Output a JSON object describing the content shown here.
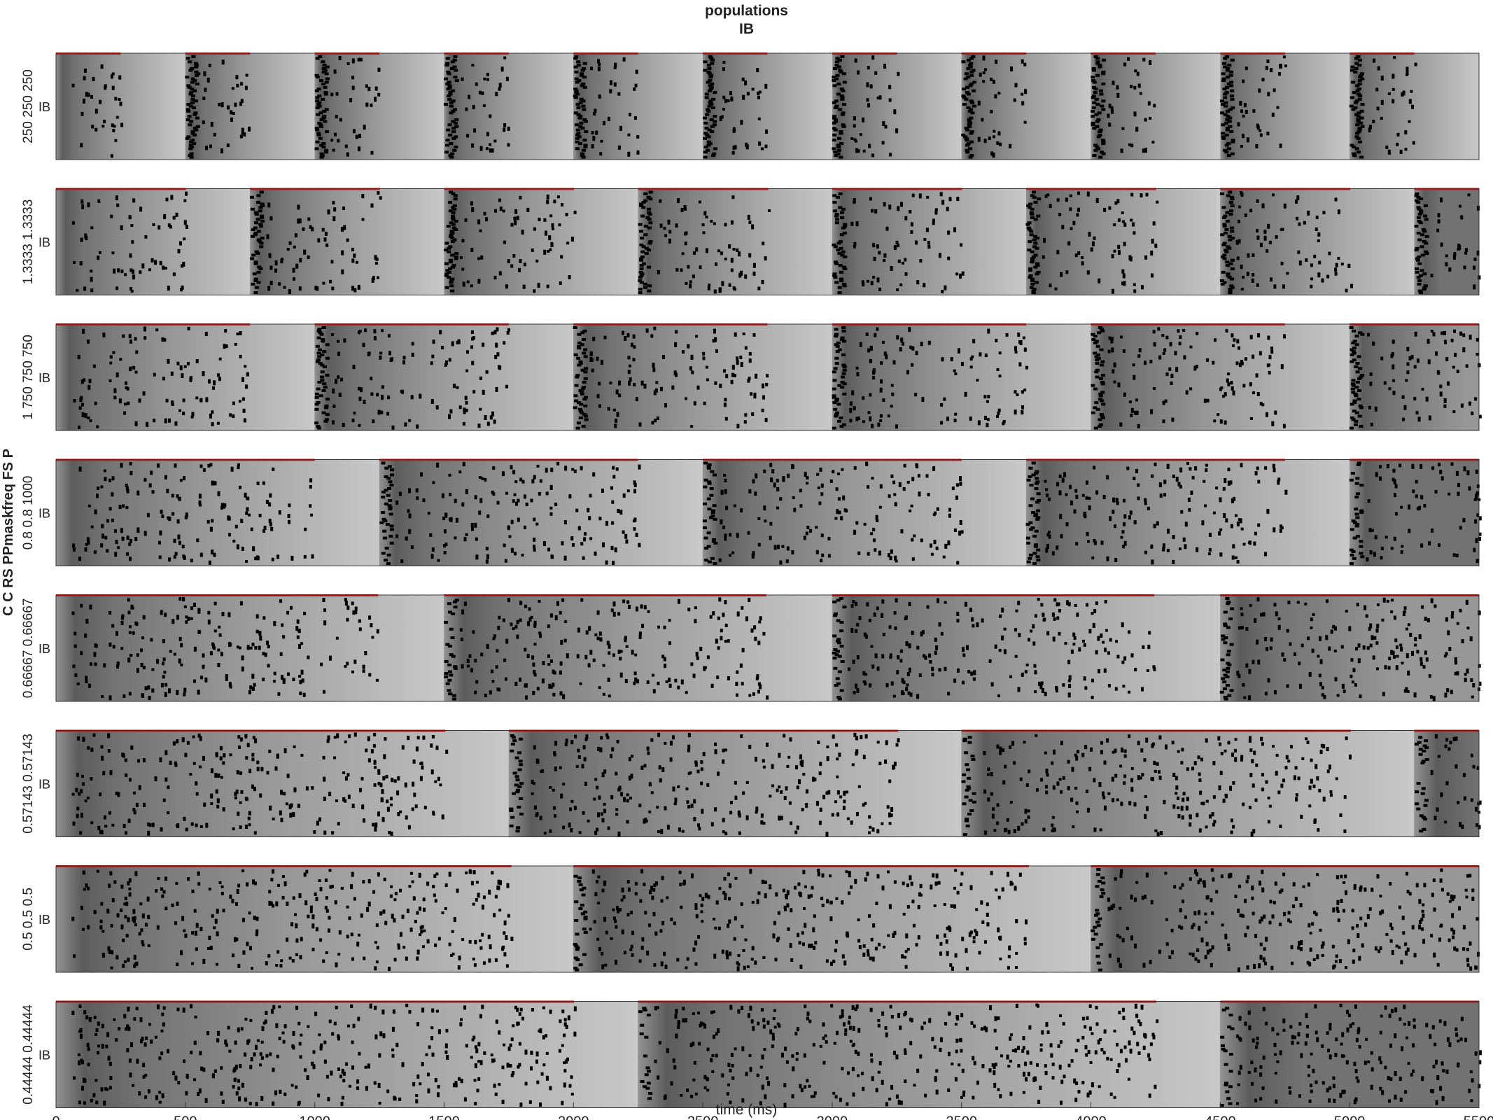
{
  "title": {
    "line1": "populations",
    "line2": "IB"
  },
  "y_axis_title": "C C RS PPmaskfreq FS P",
  "x_axis_title": "time (ms)",
  "colors": {
    "spikes": "#000000",
    "mask_bar": "#cc1111",
    "frame": "#333333"
  },
  "chart_data": {
    "type": "raster",
    "title": "populations IB",
    "xlabel": "time (ms)",
    "ylabel": "C C RS PPmaskfreq FS P",
    "xlim": [
      0,
      5500
    ],
    "x_ticks": [
      0,
      500,
      1000,
      1500,
      2000,
      2500,
      3000,
      3500,
      4000,
      4500,
      5000,
      5500
    ],
    "x_tick_labels": [
      "0",
      "500",
      "1000",
      "1500",
      "2000",
      "2500",
      "3000",
      "3500",
      "4000",
      "4500",
      "5000",
      "5500"
    ],
    "grid": false,
    "panels": [
      {
        "ylabel": "IB",
        "param_label": "250 250 250",
        "period_ms": 500,
        "mask_fraction": 0.5,
        "sync_strength": 0.9
      },
      {
        "ylabel": "IB",
        "param_label": "1.3333 1.3333",
        "period_ms": 750,
        "mask_fraction": 0.67,
        "sync_strength": 0.8
      },
      {
        "ylabel": "IB",
        "param_label": "1 750 750 750",
        "period_ms": 1000,
        "mask_fraction": 0.75,
        "sync_strength": 0.7
      },
      {
        "ylabel": "IB",
        "param_label": "0.8 0.8 1000",
        "period_ms": 1250,
        "mask_fraction": 0.8,
        "sync_strength": 0.6
      },
      {
        "ylabel": "IB",
        "param_label": "0.66667 0.66667",
        "period_ms": 1500,
        "mask_fraction": 0.83,
        "sync_strength": 0.5
      },
      {
        "ylabel": "IB",
        "param_label": "0.57143 0.57143",
        "period_ms": 1750,
        "mask_fraction": 0.86,
        "sync_strength": 0.45
      },
      {
        "ylabel": "IB",
        "param_label": "0.5 0.5 0.5",
        "period_ms": 2000,
        "mask_fraction": 0.88,
        "sync_strength": 0.4
      },
      {
        "ylabel": "IB",
        "param_label": "0.44444 0.44444",
        "period_ms": 2250,
        "mask_fraction": 0.89,
        "sync_strength": 0.35
      }
    ]
  }
}
